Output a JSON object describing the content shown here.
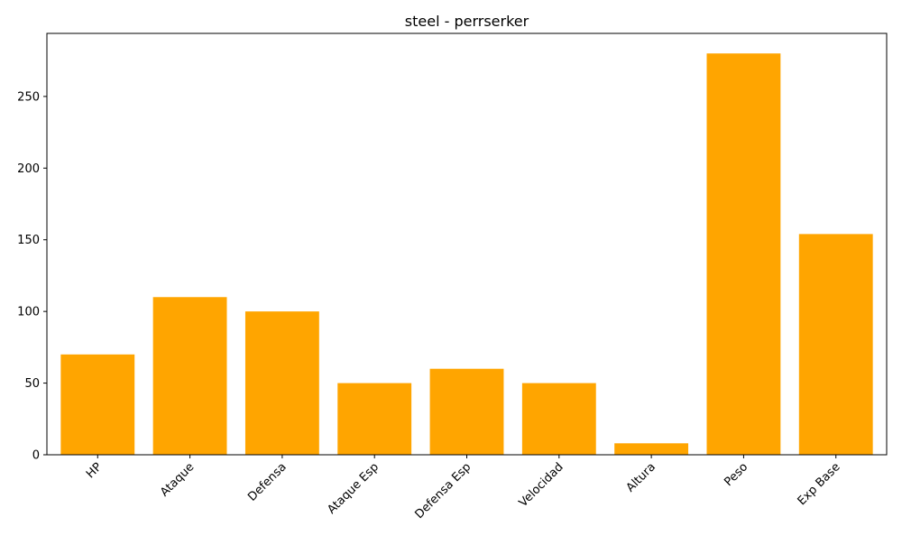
{
  "chart_data": {
    "type": "bar",
    "title": "steel - perrserker",
    "xlabel": "",
    "ylabel": "",
    "categories": [
      "HP",
      "Ataque",
      "Defensa",
      "Ataque Esp",
      "Defensa Esp",
      "Velocidad",
      "Altura",
      "Peso",
      "Exp Base"
    ],
    "values": [
      70,
      110,
      100,
      50,
      60,
      50,
      8,
      280,
      154
    ],
    "ylim": [
      0,
      294
    ],
    "yticks": [
      0,
      50,
      100,
      150,
      200,
      250
    ],
    "x_tick_rotation_deg": 45,
    "bar_color": "#FFA500",
    "grid": false,
    "legend": "none"
  }
}
